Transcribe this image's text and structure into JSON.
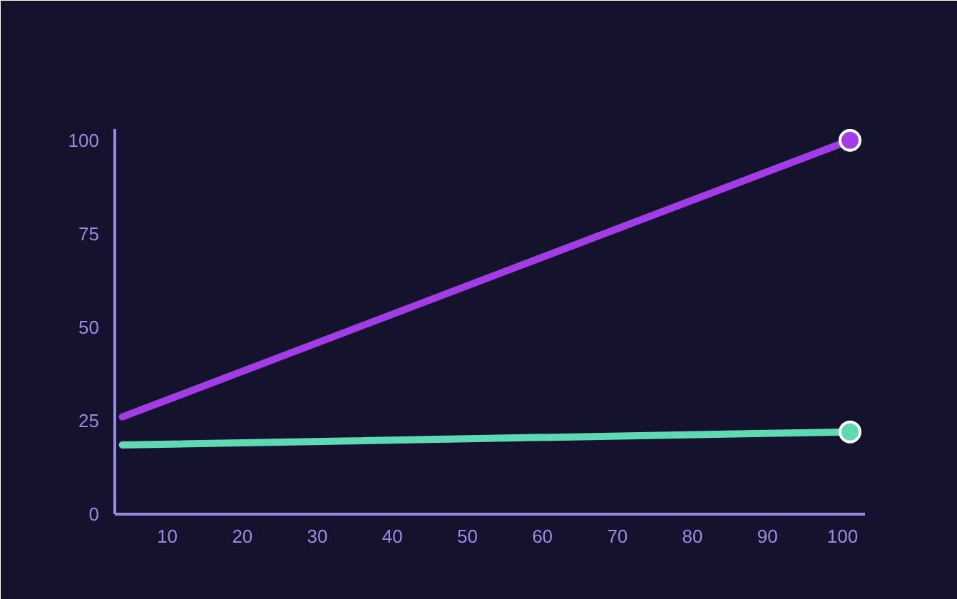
{
  "chart_data": {
    "type": "line",
    "x": [
      4,
      101
    ],
    "series": [
      {
        "color": "#a23de6",
        "values": [
          26,
          100
        ]
      },
      {
        "color": "#5fd8b4",
        "values": [
          18.5,
          22
        ]
      }
    ],
    "xlim": [
      3,
      103
    ],
    "ylim": [
      0,
      103
    ],
    "xticks": [
      10,
      20,
      30,
      40,
      50,
      60,
      70,
      80,
      90,
      100
    ],
    "yticks": [
      0,
      25,
      50,
      75,
      100
    ],
    "grid": false,
    "marker": "circle",
    "line_style": "solid"
  }
}
